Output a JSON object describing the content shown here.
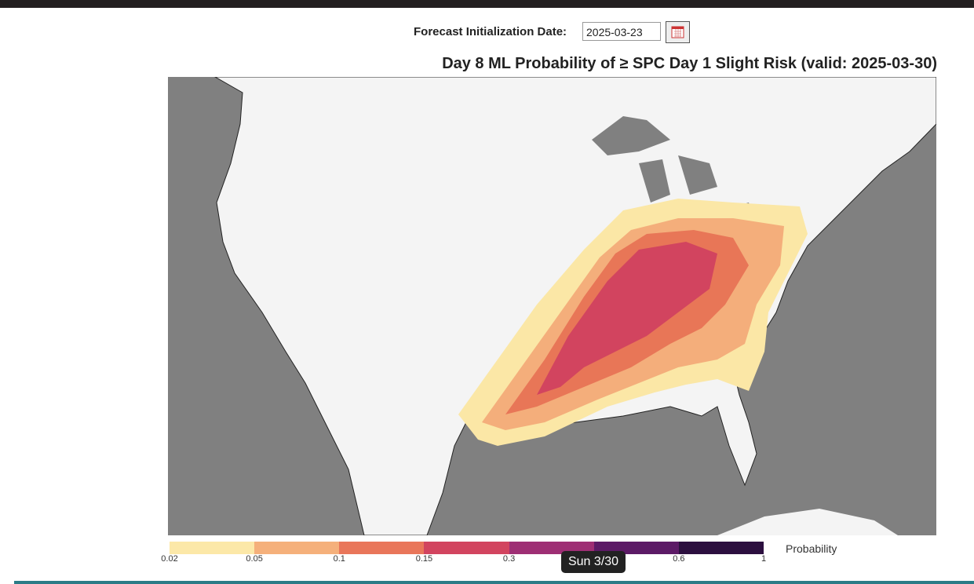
{
  "form": {
    "label": "Forecast Initialization Date:",
    "date": "2025-03-23"
  },
  "map": {
    "title": "Day 8 ML Probability of  ≥ SPC Day 1 Slight Risk (valid: 2025-03-30)"
  },
  "colorbar": {
    "label": "Probability",
    "ticks": [
      "0.02",
      "0.05",
      "0.1",
      "0.15",
      "0.3",
      "0.6",
      "1"
    ]
  },
  "tooltip": "Sun 3/30"
}
